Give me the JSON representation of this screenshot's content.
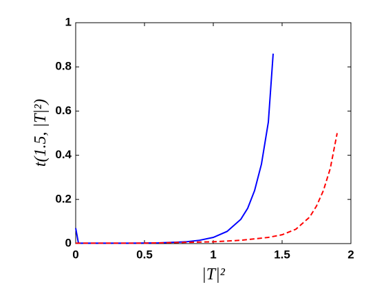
{
  "chart_data": {
    "type": "line",
    "x_label": "|T|²",
    "y_label": "t(1.5, |T|²)",
    "xlim": [
      0,
      2
    ],
    "ylim": [
      0,
      1
    ],
    "xticks": [
      0,
      0.5,
      1,
      1.5,
      2
    ],
    "yticks": [
      0,
      0.2,
      0.4,
      0.6,
      0.8,
      1
    ],
    "series": [
      {
        "color": "#0000ff",
        "dash": "solid",
        "x": [
          0,
          0.02,
          0.2,
          0.4,
          0.6,
          0.8,
          0.9,
          1.0,
          1.1,
          1.2,
          1.25,
          1.3,
          1.35,
          1.4,
          1.435
        ],
        "values": [
          0.07,
          0.002,
          0.002,
          0.002,
          0.003,
          0.008,
          0.015,
          0.028,
          0.055,
          0.11,
          0.16,
          0.24,
          0.36,
          0.55,
          0.86
        ]
      },
      {
        "color": "#ff0000",
        "dash": "dashed",
        "x": [
          0,
          0.5,
          1.0,
          1.2,
          1.4,
          1.5,
          1.6,
          1.7,
          1.75,
          1.8,
          1.85,
          1.9
        ],
        "values": [
          0.002,
          0.002,
          0.008,
          0.015,
          0.028,
          0.04,
          0.065,
          0.12,
          0.17,
          0.24,
          0.34,
          0.5
        ]
      }
    ]
  }
}
